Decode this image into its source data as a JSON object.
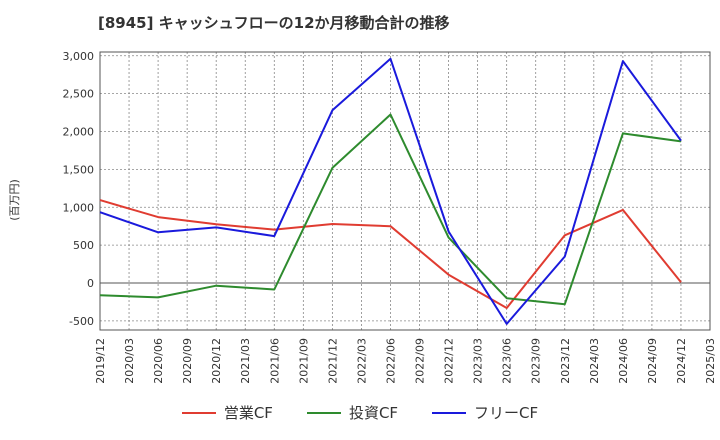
{
  "chart_data": {
    "type": "line",
    "title": "[8945]  キャッシュフローの12か月移動合計の推移",
    "ylabel": "(百万円)",
    "xlabel": "",
    "ylim": [
      -620,
      3050
    ],
    "y_ticks": [
      3000,
      2500,
      2000,
      1500,
      1000,
      500,
      0,
      -500
    ],
    "y_tick_labels": [
      "3,000",
      "2,500",
      "2,000",
      "1,500",
      "1,000",
      "500",
      "0",
      "-500"
    ],
    "x_tick_labels": [
      "2019/12",
      "2020/03",
      "2020/06",
      "2020/09",
      "2020/12",
      "2021/03",
      "2021/06",
      "2021/09",
      "2021/12",
      "2022/03",
      "2022/06",
      "2022/09",
      "2022/12",
      "2023/03",
      "2023/06",
      "2023/09",
      "2023/12",
      "2024/03",
      "2024/06",
      "2024/09",
      "2024/12",
      "2025/03"
    ],
    "grid": true,
    "series": [
      {
        "name": "営業CF",
        "color": "#e03c31",
        "points": [
          [
            "2019/12",
            1095
          ],
          [
            "2020/06",
            870
          ],
          [
            "2020/12",
            775
          ],
          [
            "2021/06",
            705
          ],
          [
            "2021/12",
            780
          ],
          [
            "2022/06",
            750
          ],
          [
            "2022/12",
            110
          ],
          [
            "2023/06",
            -330
          ],
          [
            "2023/12",
            630
          ],
          [
            "2024/06",
            965
          ],
          [
            "2024/12",
            10
          ]
        ]
      },
      {
        "name": "投資CF",
        "color": "#2e8b2e",
        "points": [
          [
            "2019/12",
            -160
          ],
          [
            "2020/06",
            -190
          ],
          [
            "2020/12",
            -35
          ],
          [
            "2021/06",
            -85
          ],
          [
            "2021/12",
            1520
          ],
          [
            "2022/06",
            2225
          ],
          [
            "2022/12",
            600
          ],
          [
            "2023/06",
            -200
          ],
          [
            "2023/12",
            -280
          ],
          [
            "2024/06",
            1975
          ],
          [
            "2024/12",
            1870
          ]
        ]
      },
      {
        "name": "フリーCF",
        "color": "#1a1adc",
        "points": [
          [
            "2019/12",
            935
          ],
          [
            "2020/06",
            670
          ],
          [
            "2020/12",
            735
          ],
          [
            "2021/06",
            620
          ],
          [
            "2021/12",
            2280
          ],
          [
            "2022/06",
            2960
          ],
          [
            "2022/12",
            680
          ],
          [
            "2023/06",
            -540
          ],
          [
            "2023/12",
            350
          ],
          [
            "2024/06",
            2930
          ],
          [
            "2024/12",
            1880
          ]
        ]
      }
    ],
    "legend": "bottom"
  }
}
